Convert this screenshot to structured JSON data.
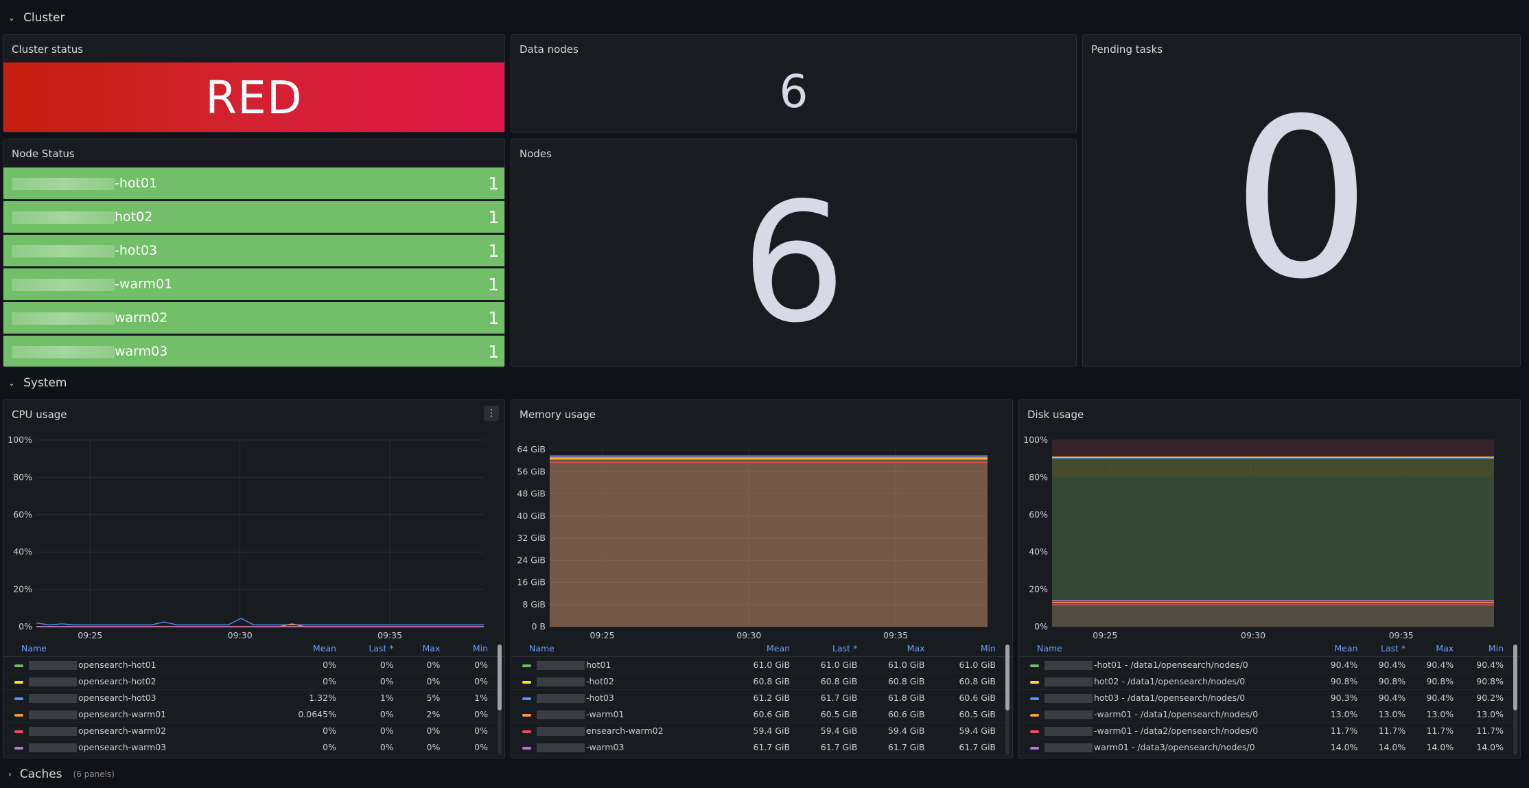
{
  "rows": {
    "cluster": {
      "label": "Cluster"
    },
    "system": {
      "label": "System"
    },
    "caches": {
      "label": "Caches",
      "sub": "(6 panels)"
    }
  },
  "cluster_status": {
    "title": "Cluster status",
    "value": "RED",
    "color": "#d42131"
  },
  "data_nodes": {
    "title": "Data nodes",
    "value": "6"
  },
  "pending_tasks": {
    "title": "Pending tasks",
    "value": "0"
  },
  "nodes": {
    "title": "Nodes",
    "value": "6"
  },
  "node_status": {
    "title": "Node Status",
    "color": "#73bf69",
    "items": [
      {
        "label": "-hot01",
        "value": "1"
      },
      {
        "label": "hot02",
        "value": "1"
      },
      {
        "label": "-hot03",
        "value": "1"
      },
      {
        "label": "-warm01",
        "value": "1"
      },
      {
        "label": "warm02",
        "value": "1"
      },
      {
        "label": "warm03",
        "value": "1"
      }
    ]
  },
  "legend_headers": {
    "name": "Name",
    "mean": "Mean",
    "last": "Last *",
    "max": "Max",
    "min": "Min"
  },
  "cpu": {
    "title": "CPU usage",
    "menu_icon": "kebab-menu-icon",
    "chart_data": {
      "type": "line",
      "y_ticks": [
        "100%",
        "80%",
        "60%",
        "40%",
        "20%",
        "0%"
      ],
      "x_ticks": [
        "09:25",
        "09:30",
        "09:35"
      ],
      "ylim": [
        0,
        100
      ],
      "series": [
        {
          "name": "opensearch-hot01",
          "color": "#73bf69",
          "values": [
            0,
            0,
            0,
            0,
            0,
            0,
            0,
            0,
            0,
            0,
            0,
            0,
            0,
            0,
            0,
            0,
            0,
            0,
            0,
            0,
            0,
            0,
            0,
            0,
            0,
            0,
            0,
            0,
            0,
            0,
            0,
            0,
            0,
            0,
            0,
            0
          ]
        },
        {
          "name": "opensearch-hot02",
          "color": "#fade2a",
          "values": [
            0,
            0,
            0,
            0,
            0,
            0,
            0,
            0,
            0,
            0,
            0,
            0,
            0,
            0,
            0,
            0,
            0,
            0,
            0,
            0,
            0,
            0,
            0,
            0,
            0,
            0,
            0,
            0,
            0,
            0,
            0,
            0,
            0,
            0,
            0,
            0
          ]
        },
        {
          "name": "opensearch-hot03",
          "color": "#5794f2",
          "values": [
            2,
            1,
            1.5,
            1,
            1,
            1,
            1,
            1,
            1,
            1,
            2.5,
            1,
            1,
            1,
            1,
            1,
            4.5,
            1,
            1,
            1,
            1,
            1,
            1,
            1,
            1,
            1,
            1,
            1,
            1,
            1,
            1,
            1,
            1,
            1,
            1,
            1
          ]
        },
        {
          "name": "opensearch-warm01",
          "color": "#ff9830",
          "values": [
            0,
            0,
            0,
            0,
            0,
            0,
            0,
            0,
            0,
            0,
            0,
            0,
            0,
            0,
            0,
            0,
            0,
            0,
            0,
            0,
            1.5,
            0,
            0,
            0,
            0,
            0,
            0,
            0,
            0,
            0,
            0,
            0,
            0,
            0,
            0,
            0
          ]
        },
        {
          "name": "opensearch-warm02",
          "color": "#f2495c",
          "values": [
            0,
            0,
            0,
            0,
            0,
            0,
            0,
            0,
            0,
            0,
            0,
            0,
            0,
            0,
            0,
            0,
            0,
            0,
            0,
            0,
            0,
            0,
            0,
            0,
            0,
            0,
            0,
            0,
            0,
            0,
            0,
            0,
            0,
            0,
            0,
            0
          ]
        },
        {
          "name": "opensearch-warm03",
          "color": "#b877d9",
          "values": [
            0,
            0,
            0,
            0,
            0,
            0,
            0,
            0,
            0,
            0,
            0,
            0,
            0,
            0,
            0,
            0,
            0,
            0,
            0,
            0,
            0,
            0,
            0,
            0,
            0,
            0,
            0,
            0,
            0,
            0,
            0,
            0,
            0,
            0,
            0,
            0
          ]
        }
      ]
    },
    "legend": [
      {
        "name": "opensearch-hot01",
        "color": "#73bf69",
        "mean": "0%",
        "last": "0%",
        "max": "0%",
        "min": "0%"
      },
      {
        "name": "opensearch-hot02",
        "color": "#fade2a",
        "mean": "0%",
        "last": "0%",
        "max": "0%",
        "min": "0%"
      },
      {
        "name": "opensearch-hot03",
        "color": "#5794f2",
        "mean": "1.32%",
        "last": "1%",
        "max": "5%",
        "min": "1%"
      },
      {
        "name": "opensearch-warm01",
        "color": "#ff9830",
        "mean": "0.0645%",
        "last": "0%",
        "max": "2%",
        "min": "0%"
      },
      {
        "name": "opensearch-warm02",
        "color": "#f2495c",
        "mean": "0%",
        "last": "0%",
        "max": "0%",
        "min": "0%"
      },
      {
        "name": "opensearch-warm03",
        "color": "#b877d9",
        "mean": "0%",
        "last": "0%",
        "max": "0%",
        "min": "0%"
      }
    ]
  },
  "memory": {
    "title": "Memory usage",
    "chart_data": {
      "type": "area",
      "y_ticks": [
        "64 GiB",
        "56 GiB",
        "48 GiB",
        "40 GiB",
        "32 GiB",
        "24 GiB",
        "16 GiB",
        "8 GiB",
        "0 B"
      ],
      "x_ticks": [
        "09:25",
        "09:30",
        "09:35"
      ],
      "ylim": [
        0,
        64
      ],
      "series": [
        {
          "name": "hot01",
          "color": "#73bf69",
          "value": 61.0
        },
        {
          "name": "hot02",
          "color": "#fade2a",
          "value": 60.8
        },
        {
          "name": "hot03",
          "color": "#5794f2",
          "value": 61.2
        },
        {
          "name": "warm01",
          "color": "#ff9830",
          "value": 60.6
        },
        {
          "name": "warm02",
          "color": "#f2495c",
          "value": 59.4
        },
        {
          "name": "warm03",
          "color": "#b877d9",
          "value": 61.7
        }
      ]
    },
    "legend": [
      {
        "name": "hot01",
        "color": "#73bf69",
        "mean": "61.0 GiB",
        "last": "61.0 GiB",
        "max": "61.0 GiB",
        "min": "61.0 GiB"
      },
      {
        "name": "-hot02",
        "color": "#fade2a",
        "mean": "60.8 GiB",
        "last": "60.8 GiB",
        "max": "60.8 GiB",
        "min": "60.8 GiB"
      },
      {
        "name": "-hot03",
        "color": "#5794f2",
        "mean": "61.2 GiB",
        "last": "61.7 GiB",
        "max": "61.8 GiB",
        "min": "60.6 GiB"
      },
      {
        "name": "-warm01",
        "color": "#ff9830",
        "mean": "60.6 GiB",
        "last": "60.5 GiB",
        "max": "60.6 GiB",
        "min": "60.5 GiB"
      },
      {
        "name": "ensearch-warm02",
        "color": "#f2495c",
        "mean": "59.4 GiB",
        "last": "59.4 GiB",
        "max": "59.4 GiB",
        "min": "59.4 GiB"
      },
      {
        "name": "-warm03",
        "color": "#b877d9",
        "mean": "61.7 GiB",
        "last": "61.7 GiB",
        "max": "61.7 GiB",
        "min": "61.7 GiB"
      }
    ]
  },
  "disk": {
    "title": "Disk usage",
    "chart_data": {
      "type": "area",
      "y_ticks": [
        "100%",
        "80%",
        "60%",
        "40%",
        "20%",
        "0%"
      ],
      "x_ticks": [
        "09:25",
        "09:30",
        "09:35"
      ],
      "ylim": [
        0,
        100
      ],
      "thresholds": [
        {
          "from": 0,
          "to": 80,
          "color": "#73bf69"
        },
        {
          "from": 80,
          "to": 90,
          "color": "#fade2a"
        },
        {
          "from": 90,
          "to": 100,
          "color": "#f2495c"
        }
      ],
      "series": [
        {
          "name": "hot01 - /data1/opensearch/nodes/0",
          "color": "#73bf69",
          "value": 90.4
        },
        {
          "name": "hot02 - /data1/opensearch/nodes/0",
          "color": "#fade2a",
          "value": 90.8
        },
        {
          "name": "hot03 - /data1/opensearch/nodes/0",
          "color": "#5794f2",
          "value": 90.3
        },
        {
          "name": "warm01 - /data1/opensearch/nodes/0",
          "color": "#ff9830",
          "value": 13.0
        },
        {
          "name": "warm01 - /data2/opensearch/nodes/0",
          "color": "#f2495c",
          "value": 11.7
        },
        {
          "name": "warm01 - /data3/opensearch/nodes/0",
          "color": "#b877d9",
          "value": 14.0
        }
      ]
    },
    "legend": [
      {
        "name": "-hot01 - /data1/opensearch/nodes/0",
        "color": "#73bf69",
        "mean": "90.4%",
        "last": "90.4%",
        "max": "90.4%",
        "min": "90.4%"
      },
      {
        "name": "hot02 - /data1/opensearch/nodes/0",
        "color": "#fade2a",
        "mean": "90.8%",
        "last": "90.8%",
        "max": "90.8%",
        "min": "90.8%"
      },
      {
        "name": "hot03 - /data1/opensearch/nodes/0",
        "color": "#5794f2",
        "mean": "90.3%",
        "last": "90.4%",
        "max": "90.4%",
        "min": "90.2%"
      },
      {
        "name": "-warm01 - /data1/opensearch/nodes/0",
        "color": "#ff9830",
        "mean": "13.0%",
        "last": "13.0%",
        "max": "13.0%",
        "min": "13.0%"
      },
      {
        "name": "-warm01 - /data2/opensearch/nodes/0",
        "color": "#f2495c",
        "mean": "11.7%",
        "last": "11.7%",
        "max": "11.7%",
        "min": "11.7%"
      },
      {
        "name": "warm01 - /data3/opensearch/nodes/0",
        "color": "#b877d9",
        "mean": "14.0%",
        "last": "14.0%",
        "max": "14.0%",
        "min": "14.0%"
      }
    ]
  }
}
